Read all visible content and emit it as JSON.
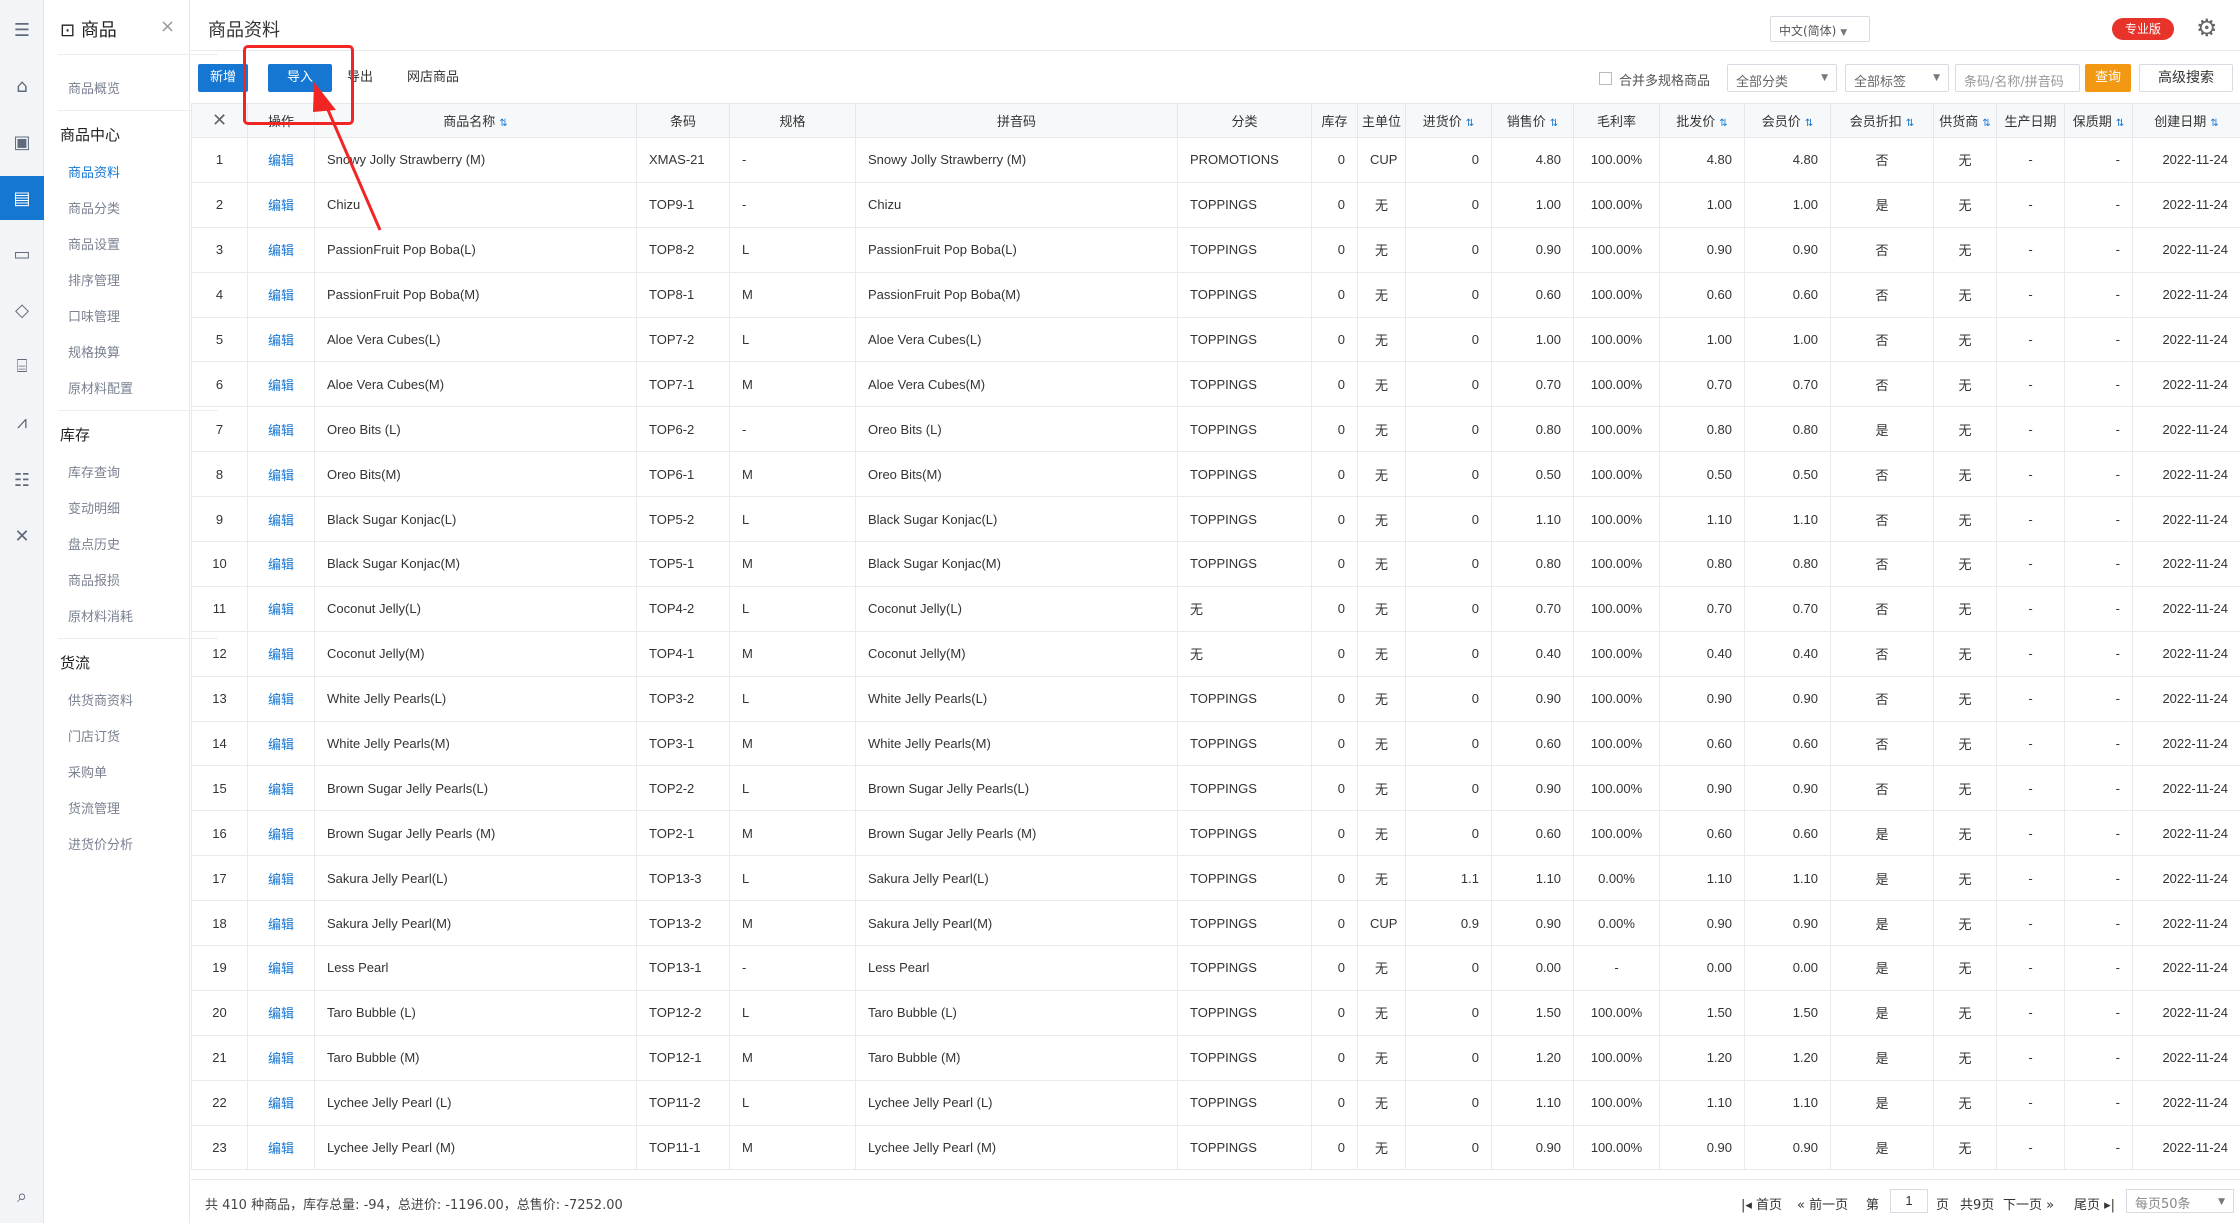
{
  "nav": {
    "title": "商品",
    "close": "×",
    "top_items": [
      "商品概览"
    ],
    "sections": [
      {
        "title": "商品中心",
        "items": [
          "商品资料",
          "商品分类",
          "商品设置",
          "排序管理",
          "口味管理",
          "规格换算",
          "原材料配置"
        ]
      },
      {
        "title": "库存",
        "items": [
          "库存查询",
          "变动明细",
          "盘点历史",
          "商品报损",
          "原材料消耗"
        ]
      },
      {
        "title": "货流",
        "items": [
          "供货商资料",
          "门店订货",
          "采购单",
          "货流管理",
          "进货价分析"
        ]
      }
    ],
    "active_item": "商品资料"
  },
  "rail_icons": [
    "menu-icon",
    "home-icon",
    "card-icon",
    "product-icon",
    "member-icon",
    "diamond-icon",
    "store-icon",
    "stats-icon",
    "sliders-icon",
    "tools-icon",
    "search-list-icon"
  ],
  "header": {
    "title": "商品资料",
    "language": "中文(简体)",
    "edition_badge": "专业版",
    "colors": {
      "primary": "#1677d2",
      "badge": "#e8332a",
      "query": "#f39813",
      "annotation": "#f22525"
    }
  },
  "toolbar": {
    "add": "新增",
    "import": "导入",
    "export": "导出",
    "online_store": "网店商品",
    "merge_checkbox": "合并多规格商品",
    "category_filter": "全部分类",
    "tag_filter": "全部标签",
    "search_placeholder": "条码/名称/拼音码",
    "query": "查询",
    "advanced": "高级搜索"
  },
  "table": {
    "columns": [
      "",
      "操作",
      "商品名称",
      "条码",
      "规格",
      "拼音码",
      "分类",
      "库存",
      "主单位",
      "进货价",
      "销售价",
      "毛利率",
      "批发价",
      "会员价",
      "会员折扣",
      "供货商",
      "生产日期",
      "保质期",
      "创建日期"
    ],
    "edit_label": "编辑",
    "rows": [
      [
        "1",
        "Snowy Jolly Strawberry (M)",
        "XMAS-21",
        "-",
        "Snowy Jolly Strawberry (M)",
        "PROMOTIONS",
        "0",
        "CUP",
        "0",
        "4.80",
        "100.00%",
        "4.80",
        "4.80",
        "否",
        "无",
        "-",
        "-",
        "2022-11-24"
      ],
      [
        "2",
        "Chizu",
        "TOP9-1",
        "-",
        "Chizu",
        "TOPPINGS",
        "0",
        "无",
        "0",
        "1.00",
        "100.00%",
        "1.00",
        "1.00",
        "是",
        "无",
        "-",
        "-",
        "2022-11-24"
      ],
      [
        "3",
        "PassionFruit Pop Boba(L)",
        "TOP8-2",
        "L",
        "PassionFruit Pop Boba(L)",
        "TOPPINGS",
        "0",
        "无",
        "0",
        "0.90",
        "100.00%",
        "0.90",
        "0.90",
        "否",
        "无",
        "-",
        "-",
        "2022-11-24"
      ],
      [
        "4",
        "PassionFruit Pop Boba(M)",
        "TOP8-1",
        "M",
        "PassionFruit Pop Boba(M)",
        "TOPPINGS",
        "0",
        "无",
        "0",
        "0.60",
        "100.00%",
        "0.60",
        "0.60",
        "否",
        "无",
        "-",
        "-",
        "2022-11-24"
      ],
      [
        "5",
        "Aloe Vera Cubes(L)",
        "TOP7-2",
        "L",
        "Aloe Vera Cubes(L)",
        "TOPPINGS",
        "0",
        "无",
        "0",
        "1.00",
        "100.00%",
        "1.00",
        "1.00",
        "否",
        "无",
        "-",
        "-",
        "2022-11-24"
      ],
      [
        "6",
        "Aloe Vera Cubes(M)",
        "TOP7-1",
        "M",
        "Aloe Vera Cubes(M)",
        "TOPPINGS",
        "0",
        "无",
        "0",
        "0.70",
        "100.00%",
        "0.70",
        "0.70",
        "否",
        "无",
        "-",
        "-",
        "2022-11-24"
      ],
      [
        "7",
        "Oreo Bits (L)",
        "TOP6-2",
        "-",
        "Oreo Bits (L)",
        "TOPPINGS",
        "0",
        "无",
        "0",
        "0.80",
        "100.00%",
        "0.80",
        "0.80",
        "是",
        "无",
        "-",
        "-",
        "2022-11-24"
      ],
      [
        "8",
        "Oreo Bits(M)",
        "TOP6-1",
        "M",
        "Oreo Bits(M)",
        "TOPPINGS",
        "0",
        "无",
        "0",
        "0.50",
        "100.00%",
        "0.50",
        "0.50",
        "否",
        "无",
        "-",
        "-",
        "2022-11-24"
      ],
      [
        "9",
        "Black Sugar Konjac(L)",
        "TOP5-2",
        "L",
        "Black Sugar Konjac(L)",
        "TOPPINGS",
        "0",
        "无",
        "0",
        "1.10",
        "100.00%",
        "1.10",
        "1.10",
        "否",
        "无",
        "-",
        "-",
        "2022-11-24"
      ],
      [
        "10",
        "Black Sugar Konjac(M)",
        "TOP5-1",
        "M",
        "Black Sugar Konjac(M)",
        "TOPPINGS",
        "0",
        "无",
        "0",
        "0.80",
        "100.00%",
        "0.80",
        "0.80",
        "否",
        "无",
        "-",
        "-",
        "2022-11-24"
      ],
      [
        "11",
        "Coconut Jelly(L)",
        "TOP4-2",
        "L",
        "Coconut Jelly(L)",
        "无",
        "0",
        "无",
        "0",
        "0.70",
        "100.00%",
        "0.70",
        "0.70",
        "否",
        "无",
        "-",
        "-",
        "2022-11-24"
      ],
      [
        "12",
        "Coconut Jelly(M)",
        "TOP4-1",
        "M",
        "Coconut Jelly(M)",
        "无",
        "0",
        "无",
        "0",
        "0.40",
        "100.00%",
        "0.40",
        "0.40",
        "否",
        "无",
        "-",
        "-",
        "2022-11-24"
      ],
      [
        "13",
        "White Jelly Pearls(L)",
        "TOP3-2",
        "L",
        "White Jelly Pearls(L)",
        "TOPPINGS",
        "0",
        "无",
        "0",
        "0.90",
        "100.00%",
        "0.90",
        "0.90",
        "否",
        "无",
        "-",
        "-",
        "2022-11-24"
      ],
      [
        "14",
        "White Jelly Pearls(M)",
        "TOP3-1",
        "M",
        "White Jelly Pearls(M)",
        "TOPPINGS",
        "0",
        "无",
        "0",
        "0.60",
        "100.00%",
        "0.60",
        "0.60",
        "否",
        "无",
        "-",
        "-",
        "2022-11-24"
      ],
      [
        "15",
        "Brown Sugar Jelly Pearls(L)",
        "TOP2-2",
        "L",
        "Brown Sugar Jelly Pearls(L)",
        "TOPPINGS",
        "0",
        "无",
        "0",
        "0.90",
        "100.00%",
        "0.90",
        "0.90",
        "否",
        "无",
        "-",
        "-",
        "2022-11-24"
      ],
      [
        "16",
        "Brown Sugar Jelly Pearls (M)",
        "TOP2-1",
        "M",
        "Brown Sugar Jelly Pearls (M)",
        "TOPPINGS",
        "0",
        "无",
        "0",
        "0.60",
        "100.00%",
        "0.60",
        "0.60",
        "是",
        "无",
        "-",
        "-",
        "2022-11-24"
      ],
      [
        "17",
        "Sakura Jelly Pearl(L)",
        "TOP13-3",
        "L",
        "Sakura Jelly Pearl(L)",
        "TOPPINGS",
        "0",
        "无",
        "1.1",
        "1.10",
        "0.00%",
        "1.10",
        "1.10",
        "是",
        "无",
        "-",
        "-",
        "2022-11-24"
      ],
      [
        "18",
        "Sakura Jelly Pearl(M)",
        "TOP13-2",
        "M",
        "Sakura Jelly Pearl(M)",
        "TOPPINGS",
        "0",
        "CUP",
        "0.9",
        "0.90",
        "0.00%",
        "0.90",
        "0.90",
        "是",
        "无",
        "-",
        "-",
        "2022-11-24"
      ],
      [
        "19",
        "Less Pearl",
        "TOP13-1",
        "-",
        "Less Pearl",
        "TOPPINGS",
        "0",
        "无",
        "0",
        "0.00",
        "-",
        "0.00",
        "0.00",
        "是",
        "无",
        "-",
        "-",
        "2022-11-24"
      ],
      [
        "20",
        "Taro Bubble (L)",
        "TOP12-2",
        "L",
        "Taro Bubble (L)",
        "TOPPINGS",
        "0",
        "无",
        "0",
        "1.50",
        "100.00%",
        "1.50",
        "1.50",
        "是",
        "无",
        "-",
        "-",
        "2022-11-24"
      ],
      [
        "21",
        "Taro Bubble (M)",
        "TOP12-1",
        "M",
        "Taro Bubble (M)",
        "TOPPINGS",
        "0",
        "无",
        "0",
        "1.20",
        "100.00%",
        "1.20",
        "1.20",
        "是",
        "无",
        "-",
        "-",
        "2022-11-24"
      ],
      [
        "22",
        "Lychee Jelly Pearl (L)",
        "TOP11-2",
        "L",
        "Lychee Jelly Pearl (L)",
        "TOPPINGS",
        "0",
        "无",
        "0",
        "1.10",
        "100.00%",
        "1.10",
        "1.10",
        "是",
        "无",
        "-",
        "-",
        "2022-11-24"
      ],
      [
        "23",
        "Lychee Jelly Pearl (M)",
        "TOP11-1",
        "M",
        "Lychee Jelly Pearl (M)",
        "TOPPINGS",
        "0",
        "无",
        "0",
        "0.90",
        "100.00%",
        "0.90",
        "0.90",
        "是",
        "无",
        "-",
        "-",
        "2022-11-24"
      ]
    ]
  },
  "footer": {
    "summary": "共 410 种商品，库存总量: -94，总进价: -1196.00，总售价: -7252.00",
    "first": "首页",
    "prev": "前一页",
    "page_prefix": "第",
    "page": "1",
    "page_suffix": "页",
    "total_pages": "共9页",
    "next": "下一页",
    "last": "尾页",
    "page_size": "每页50条"
  }
}
